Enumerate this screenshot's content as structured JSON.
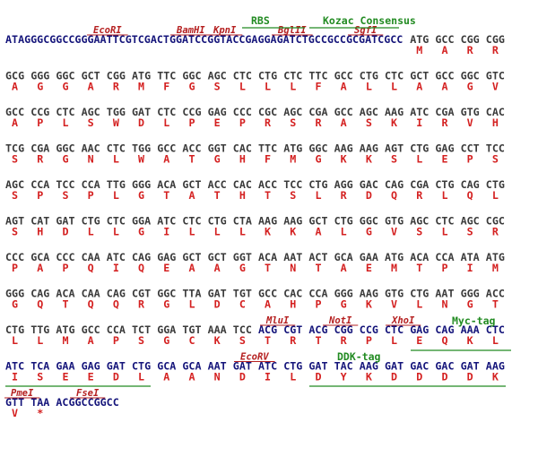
{
  "rows": [
    {
      "features": [
        "RBS",
        "Kozac Consensus"
      ],
      "sites": [
        "EcoRI",
        "BamHI",
        "KpnI",
        "BglII",
        "SgfI"
      ],
      "prefix": "ATAGGGCGGCCGGGAATTCGTCGACTGGATCCGGTACCGAGGAGATCTGCCGCCGCGATCGCC",
      "codons": [
        "ATG",
        "GCC",
        "CGG",
        "CGG"
      ],
      "amino_acids": [
        "M",
        "A",
        "R",
        "R"
      ]
    },
    {
      "codons": [
        "GCG",
        "GGG",
        "GGC",
        "GCT",
        "CGG",
        "ATG",
        "TTC",
        "GGC",
        "AGC",
        "CTC",
        "CTG",
        "CTC",
        "TTC",
        "GCC",
        "CTG",
        "CTC",
        "GCT",
        "GCC",
        "GGC",
        "GTC"
      ],
      "amino_acids": [
        "A",
        "G",
        "G",
        "A",
        "R",
        "M",
        "F",
        "G",
        "S",
        "L",
        "L",
        "L",
        "F",
        "A",
        "L",
        "L",
        "A",
        "A",
        "G",
        "V"
      ]
    },
    {
      "codons": [
        "GCC",
        "CCG",
        "CTC",
        "AGC",
        "TGG",
        "GAT",
        "CTC",
        "CCG",
        "GAG",
        "CCC",
        "CGC",
        "AGC",
        "CGA",
        "GCC",
        "AGC",
        "AAG",
        "ATC",
        "CGA",
        "GTG",
        "CAC"
      ],
      "amino_acids": [
        "A",
        "P",
        "L",
        "S",
        "W",
        "D",
        "L",
        "P",
        "E",
        "P",
        "R",
        "S",
        "R",
        "A",
        "S",
        "K",
        "I",
        "R",
        "V",
        "H"
      ]
    },
    {
      "codons": [
        "TCG",
        "CGA",
        "GGC",
        "AAC",
        "CTC",
        "TGG",
        "GCC",
        "ACC",
        "GGT",
        "CAC",
        "TTC",
        "ATG",
        "GGC",
        "AAG",
        "AAG",
        "AGT",
        "CTG",
        "GAG",
        "CCT",
        "TCC"
      ],
      "amino_acids": [
        "S",
        "R",
        "G",
        "N",
        "L",
        "W",
        "A",
        "T",
        "G",
        "H",
        "F",
        "M",
        "G",
        "K",
        "K",
        "S",
        "L",
        "E",
        "P",
        "S"
      ]
    },
    {
      "codons": [
        "AGC",
        "CCA",
        "TCC",
        "CCA",
        "TTG",
        "GGG",
        "ACA",
        "GCT",
        "ACC",
        "CAC",
        "ACC",
        "TCC",
        "CTG",
        "AGG",
        "GAC",
        "CAG",
        "CGA",
        "CTG",
        "CAG",
        "CTG"
      ],
      "amino_acids": [
        "S",
        "P",
        "S",
        "P",
        "L",
        "G",
        "T",
        "A",
        "T",
        "H",
        "T",
        "S",
        "L",
        "R",
        "D",
        "Q",
        "R",
        "L",
        "Q",
        "L"
      ]
    },
    {
      "codons": [
        "AGT",
        "CAT",
        "GAT",
        "CTG",
        "CTC",
        "GGA",
        "ATC",
        "CTC",
        "CTG",
        "CTA",
        "AAG",
        "AAG",
        "GCT",
        "CTG",
        "GGC",
        "GTG",
        "AGC",
        "CTC",
        "AGC",
        "CGC"
      ],
      "amino_acids": [
        "S",
        "H",
        "D",
        "L",
        "L",
        "G",
        "I",
        "L",
        "L",
        "L",
        "K",
        "K",
        "A",
        "L",
        "G",
        "V",
        "S",
        "L",
        "S",
        "R"
      ]
    },
    {
      "codons": [
        "CCC",
        "GCA",
        "CCC",
        "CAA",
        "ATC",
        "CAG",
        "GAG",
        "GCT",
        "GCT",
        "GGT",
        "ACA",
        "AAT",
        "ACT",
        "GCA",
        "GAA",
        "ATG",
        "ACA",
        "CCA",
        "ATA",
        "ATG"
      ],
      "amino_acids": [
        "P",
        "A",
        "P",
        "Q",
        "I",
        "Q",
        "E",
        "A",
        "A",
        "G",
        "T",
        "N",
        "T",
        "A",
        "E",
        "M",
        "T",
        "P",
        "I",
        "M"
      ]
    },
    {
      "codons": [
        "GGG",
        "CAG",
        "ACA",
        "CAA",
        "CAG",
        "CGT",
        "GGC",
        "TTA",
        "GAT",
        "TGT",
        "GCC",
        "CAC",
        "CCA",
        "GGG",
        "AAG",
        "GTG",
        "CTG",
        "AAT",
        "GGG",
        "ACC"
      ],
      "amino_acids": [
        "G",
        "Q",
        "T",
        "Q",
        "Q",
        "R",
        "G",
        "L",
        "D",
        "C",
        "A",
        "H",
        "P",
        "G",
        "K",
        "V",
        "L",
        "N",
        "G",
        "T"
      ]
    },
    {
      "features": [
        "Myc-tag"
      ],
      "sites": [
        "MluI",
        "NotI",
        "XhoI"
      ],
      "codons": [
        "CTG",
        "TTG",
        "ATG",
        "GCC",
        "CCA",
        "TCT",
        "GGA",
        "TGT",
        "AAA",
        "TCC",
        "ACG",
        "CGT",
        "ACG",
        "CGG",
        "CCG",
        "CTC",
        "GAG",
        "CAG",
        "AAA",
        "CTC"
      ],
      "amino_acids": [
        "L",
        "L",
        "M",
        "A",
        "P",
        "S",
        "G",
        "C",
        "K",
        "S",
        "T",
        "R",
        "T",
        "R",
        "P",
        "L",
        "E",
        "Q",
        "K",
        "L"
      ]
    },
    {
      "features": [
        "DDK-tag"
      ],
      "sites": [
        "EcoRV"
      ],
      "codons": [
        "ATC",
        "TCA",
        "GAA",
        "GAG",
        "GAT",
        "CTG",
        "GCA",
        "GCA",
        "AAT",
        "GAT",
        "ATC",
        "CTG",
        "GAT",
        "TAC",
        "AAG",
        "GAT",
        "GAC",
        "GAC",
        "GAT",
        "AAG"
      ],
      "amino_acids": [
        "I",
        "S",
        "E",
        "E",
        "D",
        "L",
        "A",
        "A",
        "N",
        "D",
        "I",
        "L",
        "D",
        "Y",
        "K",
        "D",
        "D",
        "D",
        "D",
        "K"
      ]
    },
    {
      "sites": [
        "PmeI",
        "FseI"
      ],
      "codons": [
        "GTT",
        "TAA"
      ],
      "amino_acids": [
        "V",
        "*"
      ],
      "suffix": "ACGGCCGGCC"
    }
  ]
}
